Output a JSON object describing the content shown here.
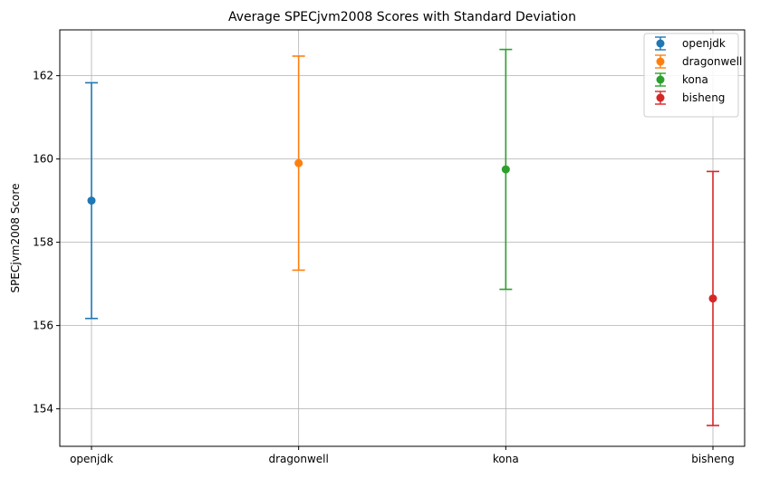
{
  "chart_data": {
    "type": "errorbar",
    "title": "Average SPECjvm2008 Scores with Standard Deviation",
    "xlabel": "",
    "ylabel": "SPECjvm2008 Score",
    "categories": [
      "openjdk",
      "dragonwell",
      "kona",
      "bisheng"
    ],
    "series": [
      {
        "name": "openjdk",
        "category": "openjdk",
        "mean": 159.0,
        "std": 2.83,
        "color": "#1f77b4"
      },
      {
        "name": "dragonwell",
        "category": "dragonwell",
        "mean": 159.9,
        "std": 2.57,
        "color": "#ff7f0e"
      },
      {
        "name": "kona",
        "category": "kona",
        "mean": 159.75,
        "std": 2.88,
        "color": "#2ca02c"
      },
      {
        "name": "bisheng",
        "category": "bisheng",
        "mean": 156.65,
        "std": 3.05,
        "color": "#d62728"
      }
    ],
    "ylim": [
      153.1,
      163.1
    ],
    "yticks": [
      154,
      156,
      158,
      160,
      162
    ],
    "grid": true,
    "legend_position": "upper right"
  }
}
